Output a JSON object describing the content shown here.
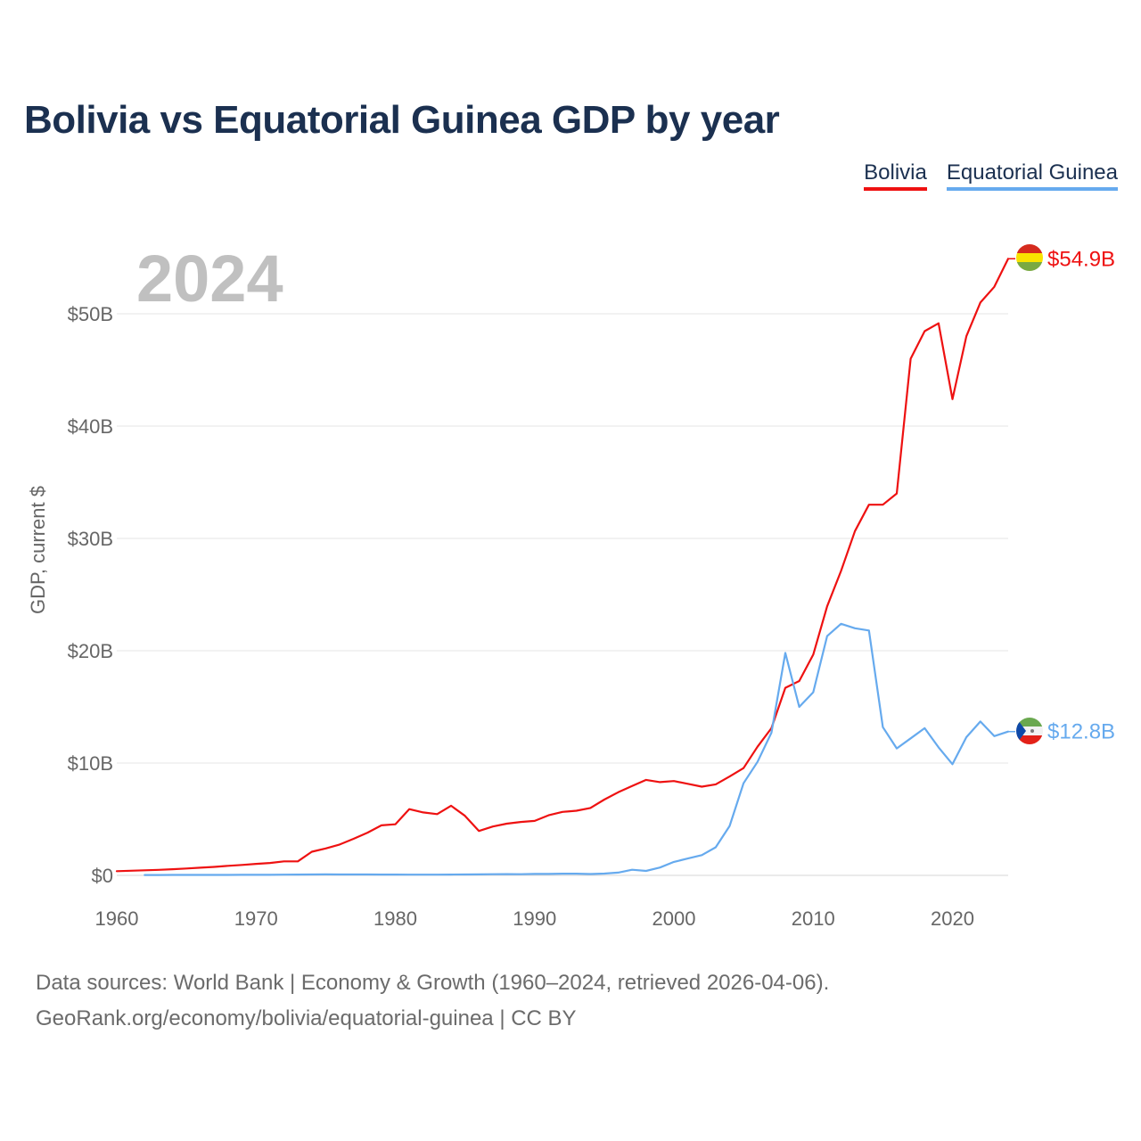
{
  "title": "Bolivia vs Equatorial Guinea GDP by year",
  "legend": [
    {
      "label": "Bolivia",
      "color": "#ee1111"
    },
    {
      "label": "Equatorial Guinea",
      "color": "#66aaee"
    }
  ],
  "footer": {
    "line1": "Data sources: World Bank | Economy & Growth (1960–2024, retrieved 2026-04-06).",
    "line2": "GeoRank.org/economy/bolivia/equatorial-guinea | CC BY"
  },
  "chart_data": {
    "type": "line",
    "title": "Bolivia vs Equatorial Guinea GDP by year",
    "year_label": "2024",
    "xlabel": "",
    "ylabel": "GDP, current $",
    "xlim": [
      1960,
      2024
    ],
    "ylim": [
      0,
      50
    ],
    "y_unit": "billions USD",
    "x_ticks": [
      {
        "value": 1960,
        "label": "1960"
      },
      {
        "value": 1970,
        "label": "1970"
      },
      {
        "value": 1980,
        "label": "1980"
      },
      {
        "value": 1990,
        "label": "1990"
      },
      {
        "value": 2000,
        "label": "2000"
      },
      {
        "value": 2010,
        "label": "2010"
      },
      {
        "value": 2020,
        "label": "2020"
      }
    ],
    "y_ticks": [
      {
        "value": 0,
        "label": "$0"
      },
      {
        "value": 10,
        "label": "$10B"
      },
      {
        "value": 20,
        "label": "$20B"
      },
      {
        "value": 30,
        "label": "$30B"
      },
      {
        "value": 40,
        "label": "$40B"
      },
      {
        "value": 50,
        "label": "$50B"
      }
    ],
    "grid": true,
    "legend_position": "top-right",
    "series": [
      {
        "name": "Bolivia",
        "color": "#ee1111",
        "end_label": "$54.9B",
        "x": [
          1960,
          1961,
          1962,
          1963,
          1964,
          1965,
          1966,
          1967,
          1968,
          1969,
          1970,
          1971,
          1972,
          1973,
          1974,
          1975,
          1976,
          1977,
          1978,
          1979,
          1980,
          1981,
          1982,
          1983,
          1984,
          1985,
          1986,
          1987,
          1988,
          1989,
          1990,
          1991,
          1992,
          1993,
          1994,
          1995,
          1996,
          1997,
          1998,
          1999,
          2000,
          2001,
          2002,
          2003,
          2004,
          2005,
          2006,
          2007,
          2008,
          2009,
          2010,
          2011,
          2012,
          2013,
          2014,
          2015,
          2016,
          2017,
          2018,
          2019,
          2020,
          2021,
          2022,
          2023,
          2024
        ],
        "values": [
          0.37,
          0.41,
          0.45,
          0.49,
          0.55,
          0.61,
          0.68,
          0.75,
          0.85,
          0.93,
          1.02,
          1.1,
          1.25,
          1.25,
          2.1,
          2.4,
          2.75,
          3.25,
          3.8,
          4.45,
          4.55,
          5.9,
          5.6,
          5.45,
          6.2,
          5.3,
          3.95,
          4.35,
          4.6,
          4.75,
          4.85,
          5.35,
          5.65,
          5.75,
          6.0,
          6.75,
          7.4,
          7.95,
          8.5,
          8.3,
          8.4,
          8.15,
          7.9,
          8.1,
          8.8,
          9.55,
          11.45,
          13.1,
          16.7,
          17.3,
          19.65,
          23.95,
          27.1,
          30.65,
          33.0,
          33.0,
          34.0,
          46.0,
          48.45,
          49.15,
          42.4,
          48.0,
          51.0,
          52.4,
          54.9
        ]
      },
      {
        "name": "Equatorial Guinea",
        "color": "#66aaee",
        "end_label": "$12.8B",
        "x": [
          1962,
          1963,
          1964,
          1965,
          1966,
          1967,
          1968,
          1969,
          1970,
          1971,
          1972,
          1973,
          1974,
          1975,
          1976,
          1977,
          1978,
          1979,
          1980,
          1981,
          1982,
          1983,
          1984,
          1985,
          1986,
          1987,
          1988,
          1989,
          1990,
          1991,
          1992,
          1993,
          1994,
          1995,
          1996,
          1997,
          1998,
          1999,
          2000,
          2001,
          2002,
          2003,
          2004,
          2005,
          2006,
          2007,
          2008,
          2009,
          2010,
          2011,
          2012,
          2013,
          2014,
          2015,
          2016,
          2017,
          2018,
          2019,
          2020,
          2021,
          2022,
          2023,
          2024
        ],
        "values": [
          0.03,
          0.03,
          0.04,
          0.04,
          0.04,
          0.04,
          0.04,
          0.05,
          0.05,
          0.05,
          0.06,
          0.07,
          0.08,
          0.09,
          0.08,
          0.08,
          0.08,
          0.07,
          0.07,
          0.06,
          0.06,
          0.06,
          0.07,
          0.08,
          0.09,
          0.1,
          0.11,
          0.1,
          0.13,
          0.13,
          0.15,
          0.15,
          0.12,
          0.16,
          0.25,
          0.5,
          0.4,
          0.7,
          1.2,
          1.5,
          1.8,
          2.5,
          4.4,
          8.2,
          10.1,
          12.7,
          19.8,
          15.0,
          16.3,
          21.3,
          22.4,
          22.0,
          21.8,
          13.2,
          11.3,
          12.2,
          13.1,
          11.4,
          9.9,
          12.3,
          13.7,
          12.4,
          12.8
        ]
      }
    ]
  }
}
